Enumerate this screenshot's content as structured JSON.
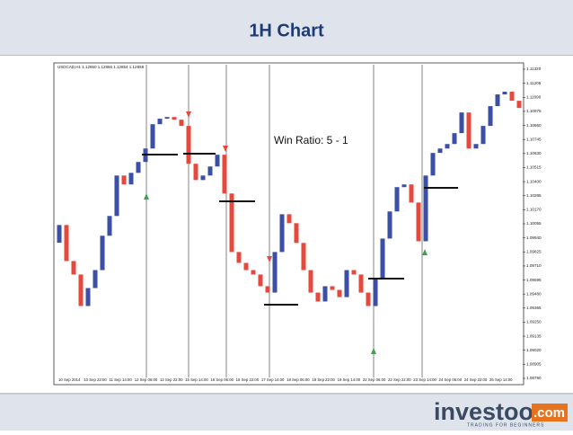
{
  "header": {
    "title": "1H Chart"
  },
  "chart_data": {
    "type": "candlestick",
    "symbol": "USDCAD,H1 1.12860 1.12866 1.12854 1.12858",
    "annotation": "Win Ratio: 5 - 1",
    "up_color": "#3c4fa6",
    "down_color": "#e5493c",
    "open": [
      1.099,
      1.10045,
      1.0975,
      1.0964,
      1.09382,
      1.09529,
      1.09676,
      1.09957,
      1.10119,
      1.1045,
      1.10377,
      1.10472,
      1.10561,
      1.10671,
      1.1087,
      1.10915,
      1.10929,
      1.10907,
      1.10856,
      1.10546,
      1.10413,
      1.1045,
      1.10524,
      1.1062,
      1.10303,
      1.09824,
      1.09735,
      1.09676,
      1.0964,
      1.09544,
      1.09492,
      1.09824,
      1.10133,
      1.1006,
      1.09898,
      1.09676,
      1.09492,
      1.09419,
      1.09544,
      1.09514,
      1.09455,
      1.09676,
      1.0964,
      1.09492,
      1.09382,
      1.09603,
      1.09934,
      1.10156,
      1.10355,
      1.10377,
      1.10229,
      1.09912,
      1.1045,
      1.10635,
      1.10671,
      1.10708,
      1.10797,
      1.10966,
      1.10671,
      1.10708,
      1.10856,
      1.11018,
      1.11114,
      1.11136,
      1.11062
    ],
    "close": [
      1.10045,
      1.0975,
      1.0964,
      1.09382,
      1.09529,
      1.09676,
      1.09957,
      1.10119,
      1.1045,
      1.10377,
      1.10472,
      1.10561,
      1.10671,
      1.1087,
      1.10915,
      1.10929,
      1.10907,
      1.10856,
      1.10546,
      1.10413,
      1.1045,
      1.10524,
      1.1062,
      1.10303,
      1.09824,
      1.09735,
      1.09676,
      1.0964,
      1.09544,
      1.09492,
      1.09824,
      1.10133,
      1.1006,
      1.09898,
      1.09676,
      1.09492,
      1.09419,
      1.09544,
      1.09514,
      1.09455,
      1.09676,
      1.0964,
      1.09492,
      1.09382,
      1.09603,
      1.09934,
      1.10156,
      1.10355,
      1.10377,
      1.10229,
      1.09912,
      1.1045,
      1.10635,
      1.10671,
      1.10708,
      1.10797,
      1.10966,
      1.10671,
      1.10708,
      1.10856,
      1.11018,
      1.11114,
      1.11136,
      1.11062,
      1.11003
    ],
    "ylim": [
      1.08753,
      1.11357
    ],
    "yticks": [
      {
        "value": 1.1132,
        "label": "1.11320"
      },
      1.11205,
      {
        "value": 1.1109,
        "label": "1.11090"
      },
      1.10975,
      {
        "value": 1.1086,
        "label": "1.10860"
      },
      1.10745,
      {
        "value": 1.1063,
        "label": "1.10630"
      },
      1.10515,
      {
        "value": 1.104,
        "label": "1.10400"
      },
      1.10285,
      {
        "value": 1.1017,
        "label": "1.10170"
      },
      1.10055,
      {
        "value": 1.0994,
        "label": "1.09940"
      },
      1.09825,
      {
        "value": 1.0971,
        "label": "1.09710"
      },
      1.09595,
      {
        "value": 1.0948,
        "label": "1.09480"
      },
      1.09365,
      {
        "value": 1.0925,
        "label": "1.09250"
      },
      1.09135,
      {
        "value": 1.0902,
        "label": "1.09020"
      },
      1.08905,
      {
        "value": 1.0879,
        "label": "1.08790"
      }
    ],
    "xlabels": [
      "10 Sep 2014",
      "10 Sep 22:00",
      "11 Sep 14:00",
      "12 Sep 06:00",
      "12 Sep 22:00",
      "15 Sep 14:00",
      "16 Sep 06:00",
      "16 Sep 22:00",
      "17 Sep 14:00",
      "18 Sep 06:00",
      "18 Sep 22:00",
      "19 Sep 14:00",
      "22 Sep 06:00",
      "22 Sep 22:00",
      "23 Sep 14:00",
      "24 Sep 06:00",
      "24 Sep 22:00",
      "25 Sep 14:00"
    ]
  },
  "footer": {
    "brand": "investoo",
    "tld": ".com",
    "tagline": "TRADING FOR BEGINNERS"
  }
}
